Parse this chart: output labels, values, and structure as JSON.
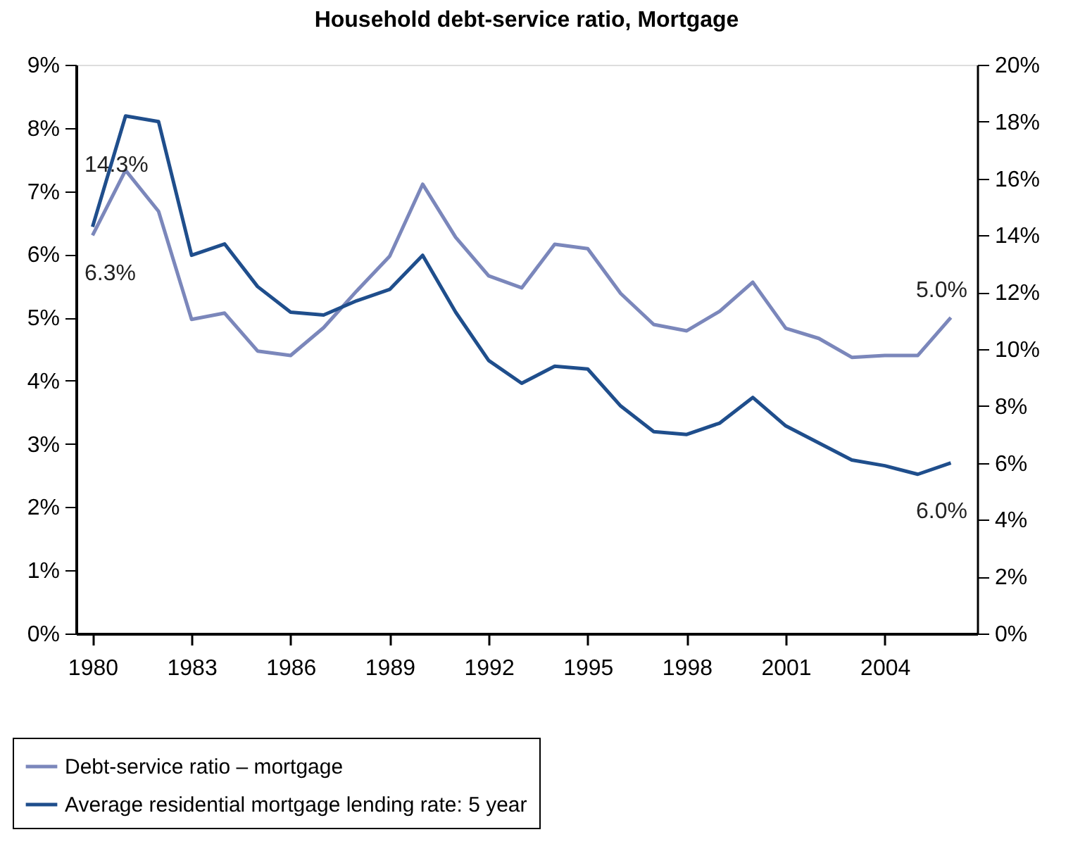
{
  "chart_data": {
    "type": "line",
    "title": "Household debt-service ratio, Mortgage",
    "x": [
      1980,
      1981,
      1982,
      1983,
      1984,
      1985,
      1986,
      1987,
      1988,
      1989,
      1990,
      1991,
      1992,
      1993,
      1994,
      1995,
      1996,
      1997,
      1998,
      1999,
      2000,
      2001,
      2002,
      2003,
      2004,
      2005,
      2006
    ],
    "series": [
      {
        "name": "Debt-service ratio – mortgage",
        "color": "#7b87bb",
        "values": [
          6.3,
          7.33,
          6.68,
          4.97,
          5.07,
          4.47,
          4.4,
          4.84,
          5.42,
          5.97,
          7.11,
          6.27,
          5.66,
          5.47,
          6.16,
          6.09,
          5.38,
          4.89,
          4.79,
          5.1,
          5.56,
          4.83,
          4.67,
          4.37,
          4.4,
          4.4,
          5.0
        ]
      },
      {
        "name": "Average residential mortgage lending rate: 5 year",
        "color": "#1f4e8c",
        "axis": "y2",
        "values": [
          14.3,
          18.2,
          18.0,
          13.3,
          13.7,
          12.2,
          11.3,
          11.2,
          11.7,
          12.1,
          13.3,
          11.3,
          9.6,
          8.8,
          9.4,
          9.3,
          8.0,
          7.1,
          7.0,
          7.4,
          8.3,
          7.3,
          6.7,
          6.1,
          5.9,
          5.6,
          6.0
        ]
      }
    ],
    "annotations": [
      "14.3%",
      "6.3%",
      "5.0%",
      "6.0%"
    ],
    "xlim": [
      1979.5,
      2006.8
    ],
    "xticks": [
      1980,
      1983,
      1986,
      1989,
      1992,
      1995,
      1998,
      2001,
      2004
    ],
    "ylim": [
      0,
      9
    ],
    "yticks": [
      {
        "value": 0,
        "label": "0%"
      },
      {
        "value": 1,
        "label": "1%"
      },
      {
        "value": 2,
        "label": "2%"
      },
      {
        "value": 3,
        "label": "3%"
      },
      {
        "value": 4,
        "label": "4%"
      },
      {
        "value": 5,
        "label": "5%"
      },
      {
        "value": 6,
        "label": "6%"
      },
      {
        "value": 7,
        "label": "7%"
      },
      {
        "value": 8,
        "label": "8%"
      },
      {
        "value": 9,
        "label": "9%"
      }
    ],
    "y2lim": [
      0,
      20
    ],
    "y2ticks": [
      {
        "value": 0,
        "label": "0%"
      },
      {
        "value": 2,
        "label": "2%"
      },
      {
        "value": 4,
        "label": "4%"
      },
      {
        "value": 6,
        "label": "6%"
      },
      {
        "value": 8,
        "label": "8%"
      },
      {
        "value": 10,
        "label": "10%"
      },
      {
        "value": 12,
        "label": "12%"
      },
      {
        "value": 14,
        "label": "14%"
      },
      {
        "value": 16,
        "label": "16%"
      },
      {
        "value": 18,
        "label": "18%"
      },
      {
        "value": 20,
        "label": "20%"
      }
    ],
    "grid": false,
    "legend": "bottom left",
    "line_style": "solid",
    "marker": "none"
  }
}
